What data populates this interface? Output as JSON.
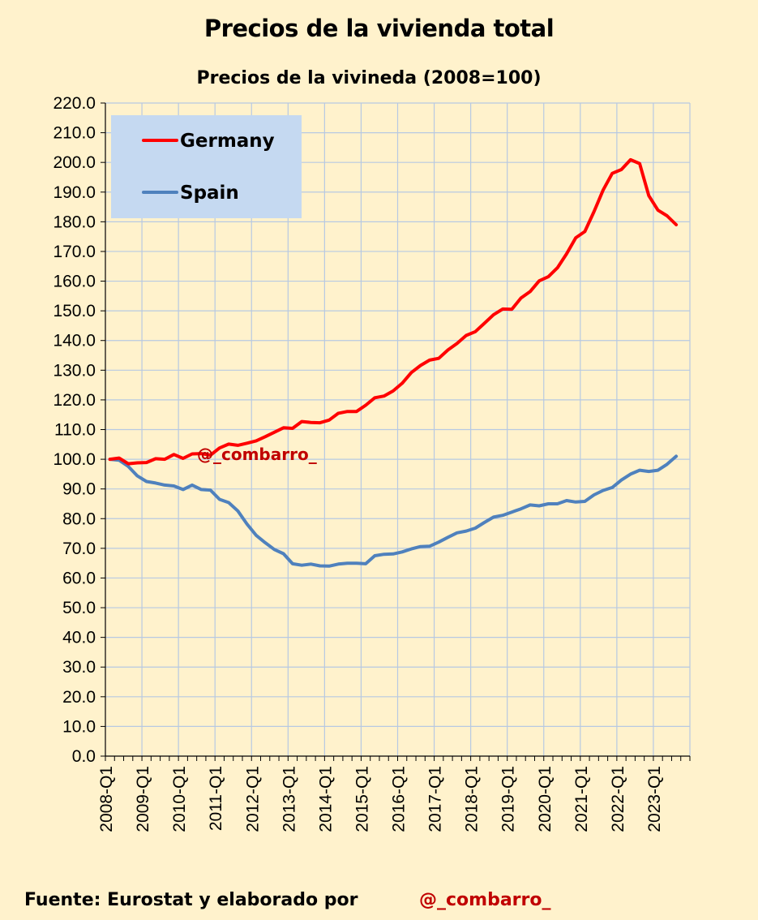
{
  "title": "Precios de la vivienda total",
  "footer": {
    "source_text": "Fuente: Eurostat y elaborado por",
    "handle": "@_combarro_"
  },
  "chart_data": {
    "type": "line",
    "subtitle": "Precios de la vivineda (2008=100)",
    "watermark": "@_combarro_",
    "ylim": [
      0,
      220
    ],
    "ytick_step": 10,
    "ytick_labels": [
      "0.0",
      "10.0",
      "20.0",
      "30.0",
      "40.0",
      "50.0",
      "60.0",
      "70.0",
      "80.0",
      "90.0",
      "100.0",
      "110.0",
      "120.0",
      "130.0",
      "140.0",
      "150.0",
      "160.0",
      "170.0",
      "180.0",
      "190.0",
      "200.0",
      "210.0",
      "220.0"
    ],
    "x_tick_labels": [
      "2008-Q1",
      "2009-Q1",
      "2010-Q1",
      "2011-Q1",
      "2012-Q1",
      "2013-Q1",
      "2014-Q1",
      "2015-Q1",
      "2016-Q1",
      "2017-Q1",
      "2018-Q1",
      "2019-Q1",
      "2020-Q1",
      "2021-Q1",
      "2022-Q1",
      "2023-Q1"
    ],
    "x_start": "2008-Q1",
    "x_end": "2023-Q3",
    "grid": true,
    "legend_position": "top-left",
    "series": [
      {
        "name": "Germany",
        "color": "#ff0000",
        "values": [
          100.0,
          100.4,
          98.5,
          98.8,
          98.9,
          100.2,
          100.0,
          101.6,
          100.3,
          101.8,
          101.9,
          101.4,
          103.8,
          105.1,
          104.7,
          105.4,
          106.2,
          107.6,
          109.1,
          110.6,
          110.4,
          112.7,
          112.4,
          112.3,
          113.2,
          115.5,
          116.1,
          116.1,
          118.2,
          120.7,
          121.3,
          123.0,
          125.6,
          129.2,
          131.6,
          133.4,
          134.0,
          136.8,
          139.0,
          141.7,
          143.0,
          145.8,
          148.7,
          150.6,
          150.5,
          154.3,
          156.5,
          160.1,
          161.5,
          164.5,
          169.2,
          174.6,
          176.7,
          183.4,
          190.7,
          196.3,
          197.6,
          200.9,
          199.6,
          188.8,
          183.9,
          182.0,
          179.0
        ]
      },
      {
        "name": "Spain",
        "color": "#4f81bd",
        "values": [
          100.0,
          99.7,
          97.6,
          94.4,
          92.5,
          92.0,
          91.3,
          91.0,
          89.8,
          91.3,
          89.8,
          89.6,
          86.5,
          85.4,
          82.6,
          78.2,
          74.4,
          71.9,
          69.6,
          68.2,
          64.8,
          64.3,
          64.7,
          64.1,
          64.0,
          64.7,
          65.0,
          65.0,
          64.8,
          67.5,
          68.0,
          68.1,
          68.8,
          69.8,
          70.6,
          70.7,
          72.1,
          73.7,
          75.2,
          75.8,
          76.8,
          78.7,
          80.5,
          81.1,
          82.2,
          83.3,
          84.6,
          84.3,
          85.0,
          85.0,
          86.1,
          85.6,
          85.8,
          88.0,
          89.5,
          90.5,
          93.0,
          95.0,
          96.3,
          95.9,
          96.3,
          98.3,
          101.0
        ]
      }
    ]
  }
}
